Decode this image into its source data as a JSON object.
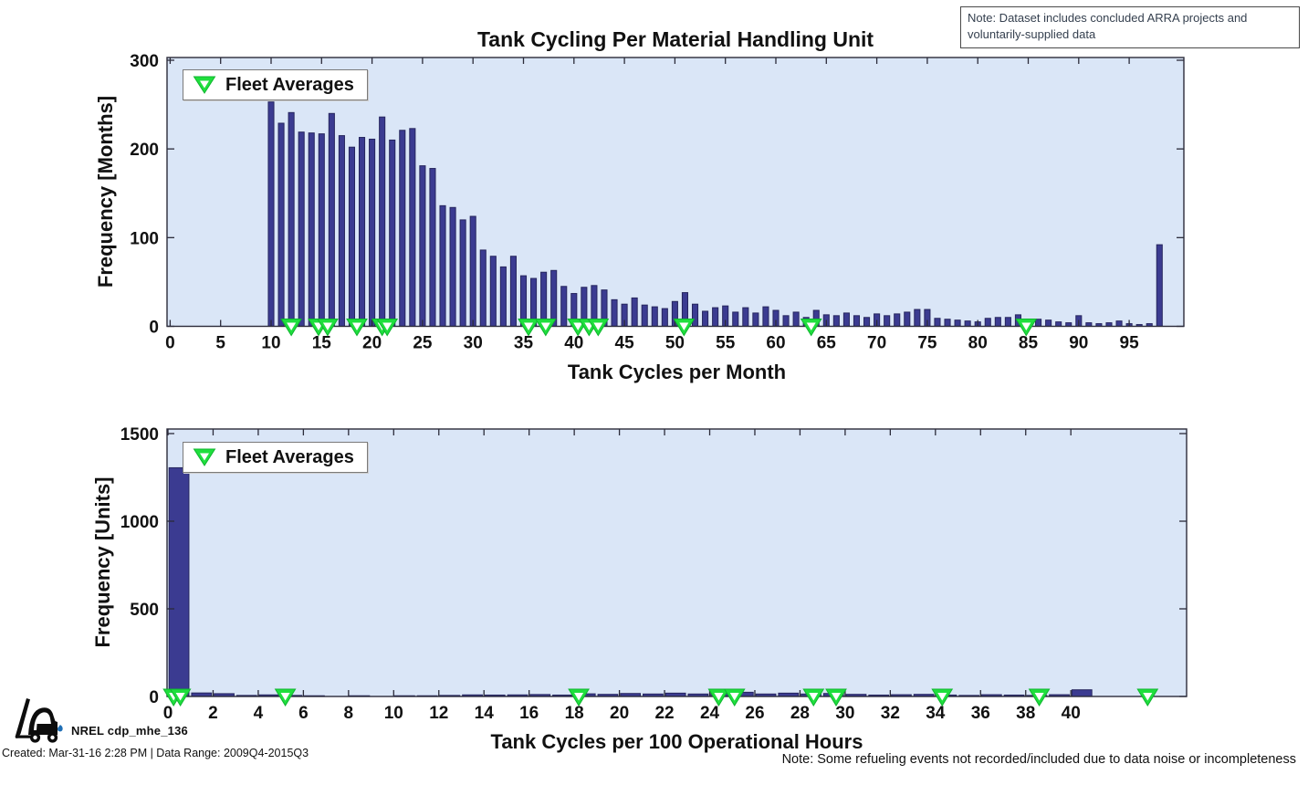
{
  "notes": {
    "dataset": "Note: Dataset includes concluded ARRA projects and voluntarily-supplied data",
    "refueling": "Note:  Some refueling events not recorded/included due to data noise or incompleteness"
  },
  "footer": {
    "brand": "NREL cdp_mhe_136",
    "created": "Created: Mar-31-16 2:28 PM | Data Range: 2009Q4-2015Q3",
    "logo_icon": "forklift-icon"
  },
  "colors": {
    "bar": "#3b3b91",
    "bar_edge": "#26265e",
    "plot_bg": "#dae6f7",
    "frame": "#2b2b3a",
    "marker_green": "#1fdf3d",
    "marker_green_edge": "#0fb52f",
    "marker_inner": "#ffffff",
    "text": "#111111"
  },
  "chart_data": [
    {
      "type": "bar",
      "title": "Tank Cycling Per Material Handling Unit",
      "xlabel": "Tank Cycles per Month",
      "ylabel": "Frequency [Months]",
      "legend": "Fleet Averages",
      "legend_marker": "green-down-triangle",
      "legend_position": "top-left",
      "grid": false,
      "xlim": [
        0,
        100.4
      ],
      "ylim": [
        0,
        303
      ],
      "xticks": [
        0,
        5,
        10,
        15,
        20,
        25,
        30,
        35,
        40,
        45,
        50,
        55,
        60,
        65,
        70,
        75,
        80,
        85,
        90,
        95
      ],
      "yticks": [
        0,
        100,
        200,
        300
      ],
      "bar_align": "center",
      "bar_width": 0.55,
      "x": [
        10,
        11,
        12,
        13,
        14,
        15,
        16,
        17,
        18,
        19,
        20,
        21,
        22,
        23,
        24,
        25,
        26,
        27,
        28,
        29,
        30,
        31,
        32,
        33,
        34,
        35,
        36,
        37,
        38,
        39,
        40,
        41,
        42,
        43,
        44,
        45,
        46,
        47,
        48,
        49,
        50,
        51,
        52,
        53,
        54,
        55,
        56,
        57,
        58,
        59,
        60,
        61,
        62,
        63,
        64,
        65,
        66,
        67,
        68,
        69,
        70,
        71,
        72,
        73,
        74,
        75,
        76,
        77,
        78,
        79,
        80,
        81,
        82,
        83,
        84,
        85,
        86,
        87,
        88,
        89,
        90,
        91,
        92,
        93,
        94,
        95,
        96,
        97,
        98
      ],
      "values": [
        253,
        229,
        241,
        219,
        218,
        217,
        240,
        215,
        202,
        213,
        211,
        236,
        210,
        221,
        223,
        181,
        178,
        136,
        134,
        120,
        124,
        86,
        79,
        67,
        79,
        57,
        54,
        61,
        63,
        45,
        37,
        44,
        46,
        41,
        30,
        25,
        32,
        24,
        22,
        20,
        28,
        38,
        25,
        17,
        21,
        23,
        16,
        21,
        15,
        22,
        18,
        12,
        16,
        10,
        18,
        13,
        12,
        15,
        12,
        10,
        14,
        12,
        14,
        16,
        19,
        19,
        9,
        8,
        7,
        6,
        5,
        9,
        10,
        10,
        13,
        7,
        8,
        7,
        5,
        4,
        12,
        4,
        3,
        4,
        6,
        3,
        2,
        3,
        92
      ],
      "fleet_averages": [
        12.0,
        14.7,
        15.6,
        18.5,
        21.0,
        21.5,
        35.5,
        37.2,
        40.4,
        41.5,
        42.4,
        50.9,
        63.5,
        84.8
      ]
    },
    {
      "type": "bar",
      "title": "",
      "xlabel": "Tank Cycles per 100 Operational Hours",
      "ylabel": "Frequency [Units]",
      "legend": "Fleet Averages",
      "legend_marker": "green-down-triangle",
      "legend_position": "top-left",
      "grid": false,
      "xlim": [
        0,
        45.1
      ],
      "ylim": [
        0,
        1526
      ],
      "xticks": [
        0,
        2,
        4,
        6,
        8,
        10,
        12,
        14,
        16,
        18,
        20,
        22,
        24,
        26,
        28,
        30,
        32,
        34,
        36,
        38,
        40
      ],
      "yticks": [
        0,
        500,
        1000,
        1500
      ],
      "bar_align": "left",
      "bar_width": 0.88,
      "x": [
        0,
        1,
        2,
        3,
        4,
        5,
        6,
        7,
        8,
        9,
        10,
        11,
        12,
        13,
        14,
        15,
        16,
        17,
        18,
        19,
        20,
        21,
        22,
        23,
        24,
        25,
        26,
        27,
        28,
        29,
        30,
        31,
        32,
        33,
        34,
        35,
        36,
        37,
        38,
        39,
        40
      ],
      "values": [
        1305,
        20,
        16,
        6,
        9,
        6,
        4,
        3,
        4,
        3,
        4,
        4,
        6,
        9,
        8,
        9,
        11,
        8,
        15,
        12,
        17,
        14,
        19,
        14,
        18,
        24,
        14,
        19,
        14,
        17,
        12,
        8,
        10,
        12,
        8,
        6,
        10,
        8,
        6,
        10,
        38
      ],
      "fleet_averages": [
        0.25,
        0.55,
        5.2,
        18.2,
        24.4,
        25.1,
        28.6,
        29.6,
        34.3,
        38.6,
        43.4
      ]
    }
  ]
}
